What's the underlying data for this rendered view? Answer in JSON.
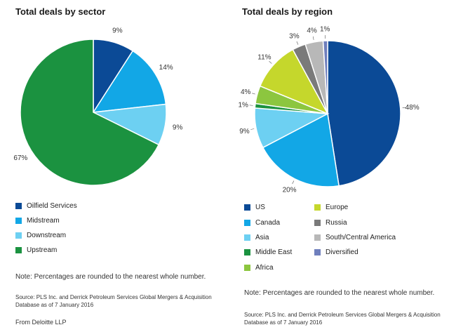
{
  "chart_data": [
    {
      "type": "pie",
      "title": "Total deals by sector",
      "slices": [
        {
          "label": "Oilfield Services",
          "value": 9,
          "display": "9%",
          "color": "#0b4a96"
        },
        {
          "label": "Midstream",
          "value": 14,
          "display": "14%",
          "color": "#12a7e6"
        },
        {
          "label": "Downstream",
          "value": 9,
          "display": "9%",
          "color": "#6dd0f2"
        },
        {
          "label": "Upstream",
          "value": 67,
          "display": "67%",
          "color": "#1b9240"
        }
      ],
      "legend_position": "bottom"
    },
    {
      "type": "pie",
      "title": "Total deals by region",
      "slices": [
        {
          "label": "US",
          "value": 48,
          "display": "48%",
          "color": "#0b4a96"
        },
        {
          "label": "Canada",
          "value": 20,
          "display": "20%",
          "color": "#12a7e6"
        },
        {
          "label": "Asia",
          "value": 9,
          "display": "9%",
          "color": "#6dd0f2"
        },
        {
          "label": "Middle East",
          "value": 1,
          "display": "1%",
          "color": "#1b9240"
        },
        {
          "label": "Africa",
          "value": 4,
          "display": "4%",
          "color": "#8cc63f"
        },
        {
          "label": "Europe",
          "value": 11,
          "display": "11%",
          "color": "#c5d72c"
        },
        {
          "label": "Russia",
          "value": 3,
          "display": "3%",
          "color": "#7a7a7a"
        },
        {
          "label": "South/Central America",
          "value": 4,
          "display": "4%",
          "color": "#b8b8b8"
        },
        {
          "label": "Diversified",
          "value": 1,
          "display": "1%",
          "color": "#6f7fbd"
        }
      ],
      "legend_position": "bottom"
    }
  ],
  "left": {
    "title": "Total deals by sector",
    "note": "Note: Percentages are rounded to the nearest whole number.",
    "source": "Source: PLS Inc. and Derrick Petroleum Services Global Mergers & Acquisition Database as of 7 January 2016"
  },
  "right": {
    "title": "Total deals by region",
    "note": "Note: Percentages are rounded to the nearest whole number.",
    "source": "Source: PLS Inc. and Derrick Petroleum Services Global Mergers & Acquisition Database as of 7 January 2016"
  },
  "footer": "From Deloitte LLP"
}
